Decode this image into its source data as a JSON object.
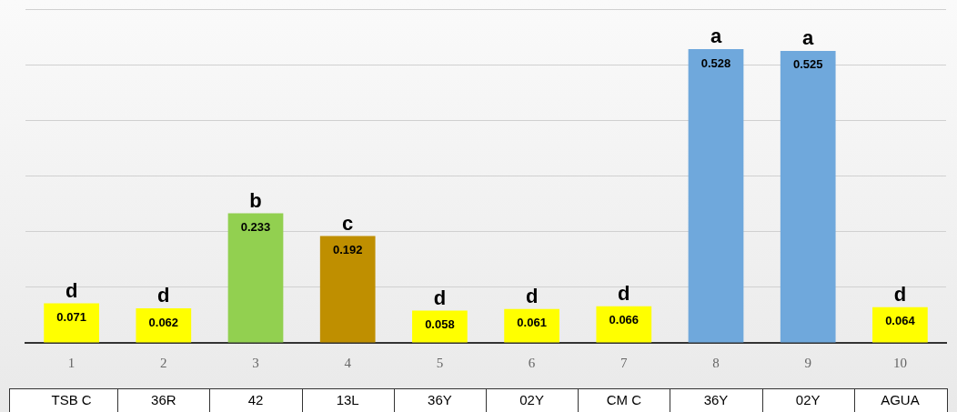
{
  "chart_data": {
    "type": "bar",
    "categories": [
      "1",
      "2",
      "3",
      "4",
      "5",
      "6",
      "7",
      "8",
      "9",
      "10"
    ],
    "values": [
      0.071,
      0.062,
      0.233,
      0.192,
      0.058,
      0.061,
      0.066,
      0.528,
      0.525,
      0.064
    ],
    "colors": [
      "#ffff00",
      "#ffff00",
      "#92d050",
      "#bf8f00",
      "#ffff00",
      "#ffff00",
      "#ffff00",
      "#6fa8dc",
      "#6fa8dc",
      "#ffff00"
    ],
    "data_labels": true,
    "ylim": [
      0,
      0.6
    ],
    "yticks": [
      {
        "value": 0,
        "label": null
      },
      {
        "value": 0.1,
        "label": null
      },
      {
        "value": 0.2,
        "label": null
      },
      {
        "value": 0.3,
        "label": null
      },
      {
        "value": 0.4,
        "label": null
      },
      {
        "value": 0.5,
        "label": null
      },
      {
        "value": 0.6,
        "label": null
      }
    ],
    "tick_labels": "x",
    "grid": "y",
    "legend": false,
    "annotations": [
      {
        "text": "d",
        "x": "1",
        "y": 0.071
      },
      {
        "text": "d",
        "x": "2",
        "y": 0.062
      },
      {
        "text": "b",
        "x": "3",
        "y": 0.233
      },
      {
        "text": "c",
        "x": "4",
        "y": 0.192
      },
      {
        "text": "d",
        "x": "5",
        "y": 0.058
      },
      {
        "text": "d",
        "x": "6",
        "y": 0.061
      },
      {
        "text": "d",
        "x": "7",
        "y": 0.066
      },
      {
        "text": "a",
        "x": "8",
        "y": 0.528
      },
      {
        "text": "a",
        "x": "9",
        "y": 0.525
      },
      {
        "text": "d",
        "x": "10",
        "y": 0.064
      },
      "TSB C",
      "36R",
      "42",
      "13L",
      "36Y",
      "02Y",
      "CM C",
      "36Y",
      "02Y",
      "AGUA"
    ]
  }
}
